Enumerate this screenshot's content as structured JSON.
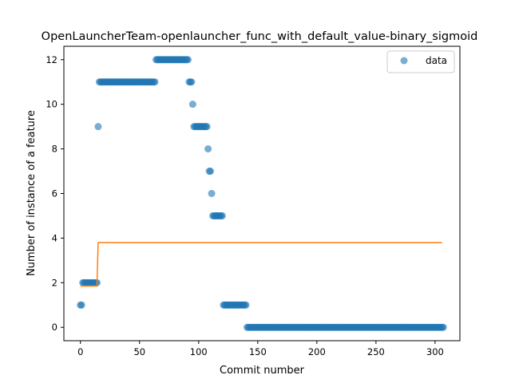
{
  "chart_data": {
    "type": "scatter",
    "title": "OpenLauncherTeam-openlauncher_func_with_default_value-binary_sigmoid",
    "xlabel": "Commit number",
    "ylabel": "Number of instance of a feature",
    "xlim": [
      -14,
      321
    ],
    "ylim": [
      -0.6,
      12.6
    ],
    "xticks": [
      0,
      50,
      100,
      150,
      200,
      250,
      300
    ],
    "yticks": [
      0,
      2,
      4,
      6,
      8,
      10,
      12
    ],
    "grid": false,
    "legend_position": "top-right",
    "colors": {
      "data": "#1f77b4",
      "fit": "#ff7f0e"
    },
    "series": [
      {
        "name": "data",
        "kind": "scatter",
        "segments": [
          {
            "x_from": 0,
            "x_to": 1,
            "y": 1
          },
          {
            "x_from": 2,
            "x_to": 14,
            "y": 2
          },
          {
            "x_from": 15,
            "x_to": 15,
            "y": 9
          },
          {
            "x_from": 16,
            "x_to": 63,
            "y": 11
          },
          {
            "x_from": 64,
            "x_to": 91,
            "y": 12
          },
          {
            "x_from": 92,
            "x_to": 94,
            "y": 11
          },
          {
            "x_from": 95,
            "x_to": 95,
            "y": 10
          },
          {
            "x_from": 96,
            "x_to": 107,
            "y": 9
          },
          {
            "x_from": 108,
            "x_to": 108,
            "y": 8
          },
          {
            "x_from": 109,
            "x_to": 110,
            "y": 7
          },
          {
            "x_from": 111,
            "x_to": 111,
            "y": 6
          },
          {
            "x_from": 112,
            "x_to": 120,
            "y": 5
          },
          {
            "x_from": 121,
            "x_to": 140,
            "y": 1
          },
          {
            "x_from": 141,
            "x_to": 307,
            "y": 0
          }
        ]
      },
      {
        "kind": "line",
        "points": [
          [
            0,
            1.85
          ],
          [
            14,
            1.85
          ],
          [
            15,
            3.8
          ],
          [
            306,
            3.8
          ]
        ]
      }
    ]
  }
}
